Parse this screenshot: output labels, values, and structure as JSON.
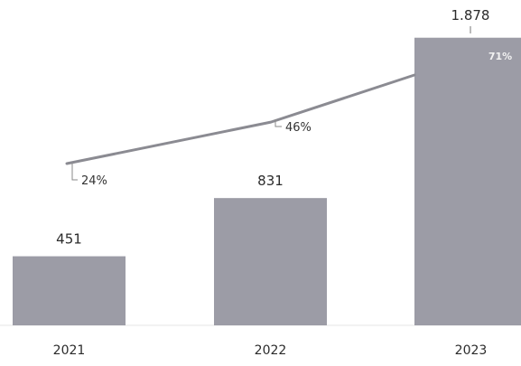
{
  "chart_data": {
    "type": "bar",
    "categories": [
      "2021",
      "2022",
      "2023"
    ],
    "series": [
      {
        "values": [
          451,
          831,
          1878
        ],
        "labels": [
          "451",
          "831",
          "1.878"
        ]
      },
      {
        "type": "line",
        "values": [
          24,
          46,
          71
        ],
        "labels": [
          "24%",
          "46%",
          "71%"
        ]
      }
    ],
    "title": "",
    "xlabel": "",
    "ylabel": "",
    "ylim": [
      0,
      1900
    ],
    "grid": false,
    "legend": "none",
    "colors": {
      "bar": "#9c9ca6",
      "line": "#8b8b92",
      "text": "#2b2b2b"
    }
  }
}
